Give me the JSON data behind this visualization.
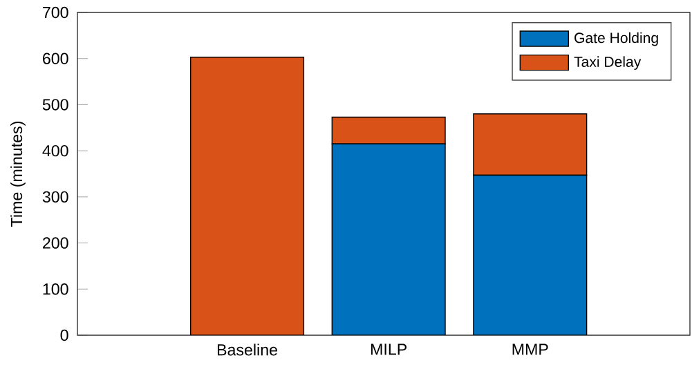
{
  "chart_data": {
    "type": "bar",
    "stacked": true,
    "ylabel": "Time (minutes)",
    "categories": [
      "Baseline",
      "MILP",
      "MMP"
    ],
    "series": [
      {
        "name": "Gate Holding",
        "color": "#0072bd",
        "values": [
          0,
          415,
          347
        ]
      },
      {
        "name": "Taxi Delay",
        "color": "#d95319",
        "values": [
          603,
          58,
          133
        ]
      }
    ],
    "ylim": [
      0,
      700
    ],
    "yticks": [
      0,
      100,
      200,
      300,
      400,
      500,
      600,
      700
    ],
    "legend": "top right",
    "grid": false
  }
}
